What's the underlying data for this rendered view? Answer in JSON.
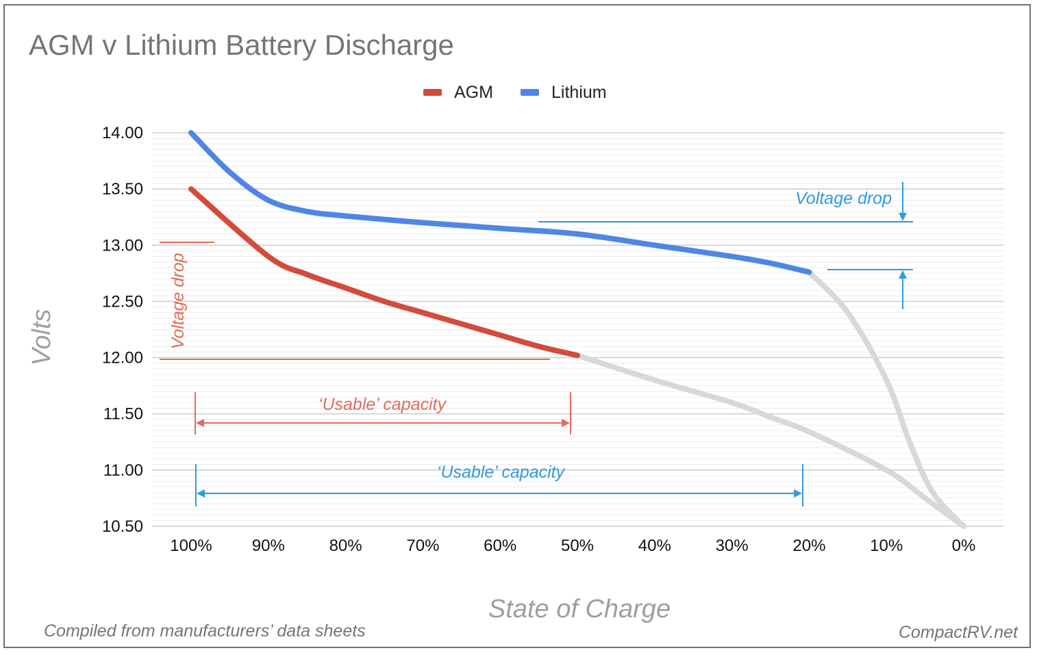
{
  "chart_data": {
    "type": "line",
    "title": "AGM v Lithium Battery Discharge",
    "xlabel": "State of Charge",
    "ylabel": "Volts",
    "categories": [
      "100%",
      "90%",
      "80%",
      "70%",
      "60%",
      "50%",
      "40%",
      "30%",
      "20%",
      "10%",
      "0%"
    ],
    "x_values": [
      100,
      90,
      80,
      70,
      60,
      50,
      40,
      30,
      20,
      10,
      0
    ],
    "yticks": [
      "14.00",
      "13.50",
      "13.00",
      "12.50",
      "12.00",
      "11.50",
      "11.00",
      "10.50"
    ],
    "ylim": [
      10.5,
      14.0
    ],
    "grid": true,
    "legend_position": "top",
    "series": [
      {
        "name": "AGM",
        "color": "#d44b3c",
        "points": [
          [
            100,
            13.5
          ],
          [
            90,
            12.9
          ],
          [
            85,
            12.74
          ],
          [
            80,
            12.62
          ],
          [
            75,
            12.5
          ],
          [
            70,
            12.4
          ],
          [
            65,
            12.3
          ],
          [
            60,
            12.2
          ],
          [
            55,
            12.1
          ],
          [
            50,
            12.02
          ]
        ],
        "continuation_color": "#d8d8d8",
        "continuation": [
          [
            50,
            12.02
          ],
          [
            40,
            11.8
          ],
          [
            30,
            11.6
          ],
          [
            25,
            11.47
          ],
          [
            20,
            11.34
          ],
          [
            10,
            11.0
          ],
          [
            5,
            10.75
          ],
          [
            0,
            10.5
          ]
        ]
      },
      {
        "name": "Lithium",
        "color": "#4f86e6",
        "points": [
          [
            100,
            14.0
          ],
          [
            95,
            13.65
          ],
          [
            90,
            13.4
          ],
          [
            85,
            13.3
          ],
          [
            80,
            13.26
          ],
          [
            70,
            13.2
          ],
          [
            60,
            13.15
          ],
          [
            50,
            13.1
          ],
          [
            40,
            13.0
          ],
          [
            30,
            12.9
          ],
          [
            25,
            12.84
          ],
          [
            20,
            12.76
          ]
        ],
        "continuation_color": "#d8d8d8",
        "continuation": [
          [
            20,
            12.76
          ],
          [
            15,
            12.4
          ],
          [
            10,
            11.8
          ],
          [
            7,
            11.25
          ],
          [
            4,
            10.8
          ],
          [
            0,
            10.5
          ]
        ]
      }
    ],
    "annotations": {
      "agm_voltage_drop": "Voltage drop",
      "agm_usable": "‘Usable’ capacity",
      "lithium_voltage_drop": "Voltage drop",
      "lithium_usable": "‘Usable’ capacity"
    },
    "annotation_colors": {
      "agm": "#e26b5a",
      "lithium": "#2f9be0"
    }
  },
  "footer": {
    "source": "Compiled from manufacturers’ data sheets",
    "credit": "CompactRV.net"
  }
}
